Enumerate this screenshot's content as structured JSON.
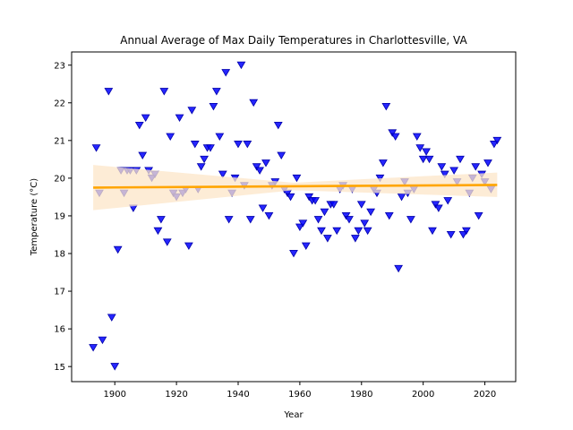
{
  "chart_data": {
    "type": "scatter",
    "title": "Annual Average of Max Daily Temperatures in Charlottesville, VA",
    "xlabel": "Year",
    "ylabel": "Temperature (°C)",
    "xlim": [
      1886,
      2030
    ],
    "ylim": [
      14.6,
      23.35
    ],
    "xticks": [
      1900,
      1920,
      1940,
      1960,
      1980,
      2000,
      2020
    ],
    "yticks": [
      15,
      16,
      17,
      18,
      19,
      20,
      21,
      22,
      23
    ],
    "grid": false,
    "legend": "none",
    "marker": "triangle-down",
    "colors": {
      "points": "#0000ff",
      "points_edge": "#0000aa",
      "trend": "#ffa500",
      "band": "#fce6c8"
    },
    "series": [
      {
        "points": [
          [
            1893,
            15.5
          ],
          [
            1894,
            20.8
          ],
          [
            1895,
            19.6
          ],
          [
            1896,
            15.7
          ],
          [
            1898,
            22.3
          ],
          [
            1899,
            16.3
          ],
          [
            1900,
            15.0
          ],
          [
            1901,
            18.1
          ],
          [
            1902,
            20.2
          ],
          [
            1903,
            19.6
          ],
          [
            1904,
            20.2
          ],
          [
            1905,
            20.2
          ],
          [
            1906,
            19.2
          ],
          [
            1907,
            20.2
          ],
          [
            1908,
            21.4
          ],
          [
            1909,
            20.6
          ],
          [
            1910,
            21.6
          ],
          [
            1911,
            20.2
          ],
          [
            1912,
            20.0
          ],
          [
            1913,
            20.1
          ],
          [
            1914,
            18.6
          ],
          [
            1915,
            18.9
          ],
          [
            1916,
            22.3
          ],
          [
            1917,
            18.3
          ],
          [
            1918,
            21.1
          ],
          [
            1919,
            19.6
          ],
          [
            1920,
            19.5
          ],
          [
            1921,
            21.6
          ],
          [
            1922,
            19.6
          ],
          [
            1923,
            19.7
          ],
          [
            1924,
            18.2
          ],
          [
            1925,
            21.8
          ],
          [
            1926,
            20.9
          ],
          [
            1927,
            19.7
          ],
          [
            1928,
            20.3
          ],
          [
            1929,
            20.5
          ],
          [
            1930,
            20.8
          ],
          [
            1931,
            20.8
          ],
          [
            1932,
            21.9
          ],
          [
            1933,
            22.3
          ],
          [
            1934,
            21.1
          ],
          [
            1935,
            20.1
          ],
          [
            1936,
            22.8
          ],
          [
            1937,
            18.9
          ],
          [
            1938,
            19.6
          ],
          [
            1939,
            20.0
          ],
          [
            1940,
            20.9
          ],
          [
            1941,
            23.0
          ],
          [
            1942,
            19.8
          ],
          [
            1943,
            20.9
          ],
          [
            1944,
            18.9
          ],
          [
            1945,
            22.0
          ],
          [
            1946,
            20.3
          ],
          [
            1947,
            20.2
          ],
          [
            1948,
            19.2
          ],
          [
            1949,
            20.4
          ],
          [
            1950,
            19.0
          ],
          [
            1951,
            19.8
          ],
          [
            1952,
            19.9
          ],
          [
            1953,
            21.4
          ],
          [
            1954,
            20.6
          ],
          [
            1955,
            19.7
          ],
          [
            1956,
            19.6
          ],
          [
            1957,
            19.5
          ],
          [
            1958,
            18.0
          ],
          [
            1959,
            20.0
          ],
          [
            1960,
            18.7
          ],
          [
            1961,
            18.8
          ],
          [
            1962,
            18.2
          ],
          [
            1963,
            19.5
          ],
          [
            1964,
            19.4
          ],
          [
            1965,
            19.4
          ],
          [
            1966,
            18.9
          ],
          [
            1967,
            18.6
          ],
          [
            1968,
            19.1
          ],
          [
            1969,
            18.4
          ],
          [
            1970,
            19.3
          ],
          [
            1971,
            19.3
          ],
          [
            1972,
            18.6
          ],
          [
            1973,
            19.7
          ],
          [
            1974,
            19.8
          ],
          [
            1975,
            19.0
          ],
          [
            1976,
            18.9
          ],
          [
            1977,
            19.7
          ],
          [
            1978,
            18.4
          ],
          [
            1979,
            18.6
          ],
          [
            1980,
            19.3
          ],
          [
            1981,
            18.8
          ],
          [
            1982,
            18.6
          ],
          [
            1983,
            19.1
          ],
          [
            1984,
            19.7
          ],
          [
            1985,
            19.6
          ],
          [
            1986,
            20.0
          ],
          [
            1987,
            20.4
          ],
          [
            1988,
            21.9
          ],
          [
            1989,
            19.0
          ],
          [
            1990,
            21.2
          ],
          [
            1991,
            21.1
          ],
          [
            1992,
            17.6
          ],
          [
            1993,
            19.5
          ],
          [
            1994,
            19.9
          ],
          [
            1995,
            19.6
          ],
          [
            1996,
            18.9
          ],
          [
            1997,
            19.7
          ],
          [
            1998,
            21.1
          ],
          [
            1999,
            20.8
          ],
          [
            2000,
            20.5
          ],
          [
            2001,
            20.7
          ],
          [
            2002,
            20.5
          ],
          [
            2003,
            18.6
          ],
          [
            2004,
            19.3
          ],
          [
            2005,
            19.2
          ],
          [
            2006,
            20.3
          ],
          [
            2007,
            20.1
          ],
          [
            2008,
            19.4
          ],
          [
            2009,
            18.5
          ],
          [
            2010,
            20.2
          ],
          [
            2011,
            19.9
          ],
          [
            2012,
            20.5
          ],
          [
            2013,
            18.5
          ],
          [
            2014,
            18.6
          ],
          [
            2015,
            19.6
          ],
          [
            2016,
            20.0
          ],
          [
            2017,
            20.3
          ],
          [
            2018,
            19.0
          ],
          [
            2019,
            20.1
          ],
          [
            2020,
            19.9
          ],
          [
            2021,
            20.4
          ],
          [
            2022,
            19.7
          ],
          [
            2023,
            20.9
          ],
          [
            2024,
            21.0
          ]
        ]
      }
    ],
    "trend": {
      "x": [
        1893,
        2024
      ],
      "y": [
        19.75,
        19.82
      ]
    },
    "confidence_band": {
      "x": [
        1893,
        1958,
        2024
      ],
      "lower": [
        19.15,
        19.68,
        19.5
      ],
      "upper": [
        20.35,
        19.88,
        20.15
      ]
    }
  }
}
